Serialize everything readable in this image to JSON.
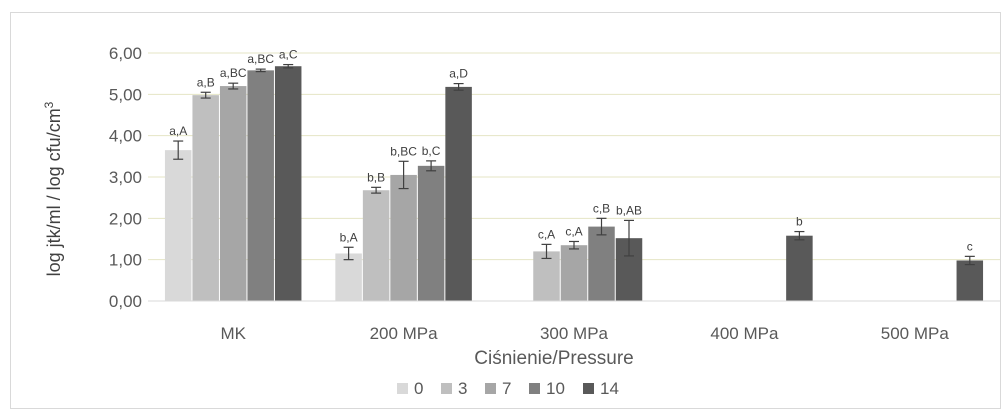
{
  "chart_data": {
    "type": "bar",
    "title": "",
    "xlabel": "Ciśnienie/Pressure",
    "ylabel": "log jtk/ml  /  log cfu/cm",
    "ylabel_superscript": "3",
    "ylim": [
      0,
      6
    ],
    "yticks": [
      "0,00",
      "1,00",
      "2,00",
      "3,00",
      "4,00",
      "5,00",
      "6,00"
    ],
    "grid": true,
    "legend_position": "bottom",
    "categories": [
      "MK",
      "200 MPa",
      "300 MPa",
      "400 MPa",
      "500 MPa"
    ],
    "series": [
      {
        "name": "0",
        "color": "#d9d9d9",
        "values": [
          3.65,
          1.15,
          0,
          null,
          null
        ],
        "errors": [
          0.22,
          0.15,
          0,
          null,
          null
        ],
        "labels": [
          "a,A",
          "b,A",
          "",
          "",
          ""
        ]
      },
      {
        "name": "3",
        "color": "#bfbfbf",
        "values": [
          4.98,
          2.68,
          1.2,
          null,
          null
        ],
        "errors": [
          0.07,
          0.07,
          0.17,
          null,
          null
        ],
        "labels": [
          "a,B",
          "b,B",
          "c,A",
          "",
          ""
        ]
      },
      {
        "name": "7",
        "color": "#a6a6a6",
        "values": [
          5.2,
          3.05,
          1.35,
          null,
          null
        ],
        "errors": [
          0.07,
          0.33,
          0.09,
          null,
          null
        ],
        "labels": [
          "a,BC",
          "b,BC",
          "c,A",
          "",
          ""
        ]
      },
      {
        "name": "10",
        "color": "#808080",
        "values": [
          5.58,
          3.27,
          1.8,
          null,
          null
        ],
        "errors": [
          0.03,
          0.12,
          0.2,
          null,
          null
        ],
        "labels": [
          "a,BC",
          "b,C",
          "c,B",
          "",
          ""
        ]
      },
      {
        "name": "14",
        "color": "#595959",
        "values": [
          5.68,
          5.18,
          1.52,
          1.58,
          0.98
        ],
        "errors": [
          0.04,
          0.08,
          0.43,
          0.1,
          0.1
        ],
        "labels": [
          "a,C",
          "a,D",
          "b,AB",
          "b",
          "c"
        ]
      }
    ]
  }
}
